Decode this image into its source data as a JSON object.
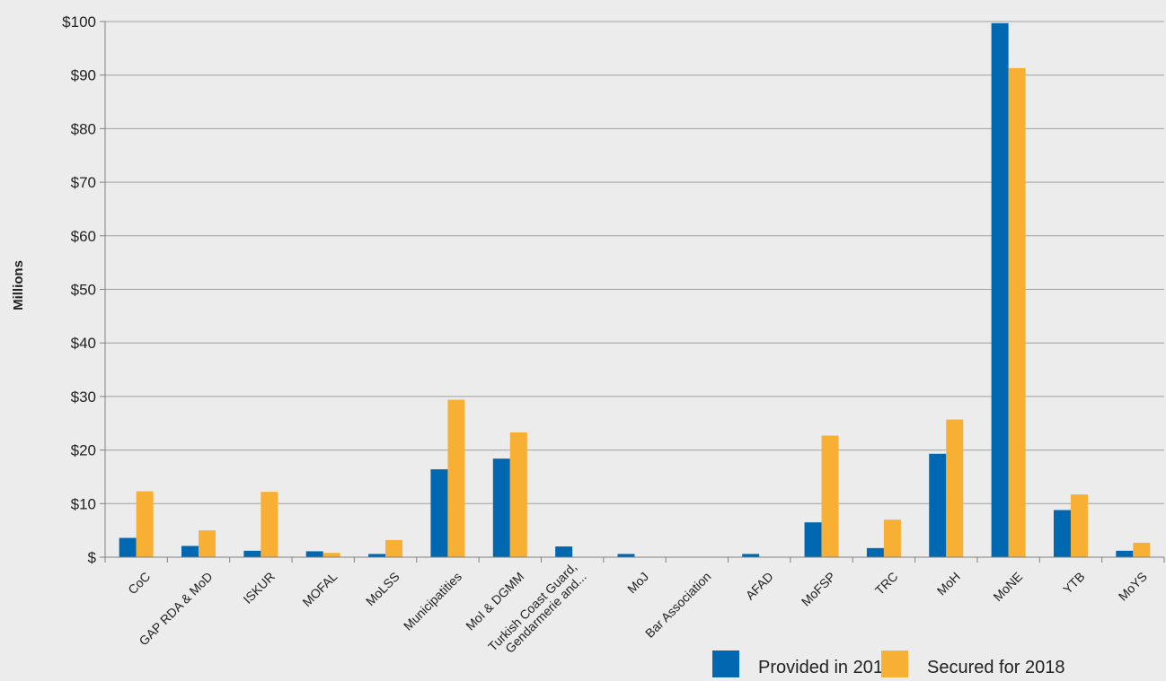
{
  "chart_data": {
    "type": "bar",
    "ylabel": "Millions",
    "xlabel": "",
    "ylim": [
      0,
      100
    ],
    "yticks": [
      0,
      10,
      20,
      30,
      40,
      50,
      60,
      70,
      80,
      90,
      100
    ],
    "ytick_labels": [
      "$",
      "$10",
      "$20",
      "$30",
      "$40",
      "$50",
      "$60",
      "$70",
      "$80",
      "$90",
      "$100"
    ],
    "grid": true,
    "legend_position": "bottom-right",
    "categories": [
      "CoC",
      "GAP RDA & MoD",
      "ISKUR",
      "MOFAL",
      "MoLSS",
      "Municipatities",
      "MoI & DGMM",
      [
        "Turkish Coast Guard,",
        "Gendarmerie and..."
      ],
      "MoJ",
      "Bar Association",
      "AFAD",
      "MoFSP",
      "TRC",
      "MoH",
      "MoNE",
      "YTB",
      "MoYS"
    ],
    "series": [
      {
        "name": "Provided in 2017",
        "color": "#0067b1",
        "values": [
          3.6,
          2.1,
          1.2,
          1.1,
          0.6,
          16.4,
          18.4,
          2.0,
          0.6,
          0,
          0.6,
          6.5,
          1.7,
          19.3,
          99.7,
          8.8,
          1.2
        ]
      },
      {
        "name": "Secured for 2018",
        "color": "#f7b033",
        "values": [
          12.3,
          5.0,
          12.2,
          0.8,
          3.2,
          29.4,
          23.3,
          0,
          0,
          0,
          0,
          22.7,
          7.0,
          25.7,
          91.3,
          11.7,
          2.7
        ]
      }
    ]
  }
}
